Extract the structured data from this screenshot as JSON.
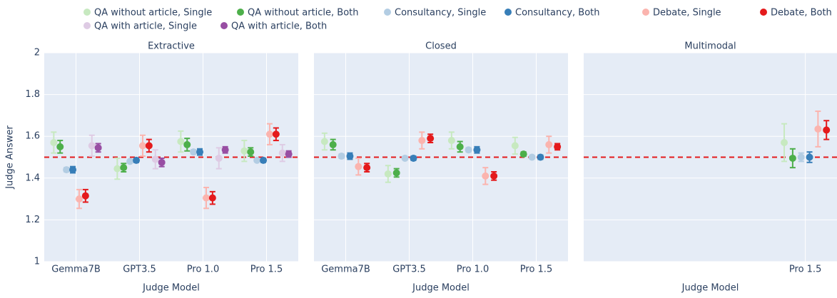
{
  "chart_data": [
    {
      "type": "errorbar",
      "title": "Extractive",
      "xlabel": "Judge Model",
      "ylabel": "Judge Answer",
      "categories": [
        "Gemma7B",
        "GPT3.5",
        "Pro 1.0",
        "Pro 1.5"
      ],
      "ylim": [
        1,
        2
      ],
      "yticks": [
        1,
        1.2,
        1.4,
        1.6,
        1.8,
        2
      ],
      "grid": true,
      "reference_line": 1.5,
      "reference_color": "#e41a1c",
      "series": [
        {
          "name": "QA without article, Single",
          "color": "#c7e9c0",
          "values": [
            1.57,
            1.445,
            1.575,
            1.53
          ],
          "errors": [
            0.05,
            0.05,
            0.05,
            0.05
          ]
        },
        {
          "name": "QA without article, Both",
          "color": "#4daf4a",
          "values": [
            1.55,
            1.45,
            1.56,
            1.525
          ],
          "errors": [
            0.03,
            0.02,
            0.03,
            0.02
          ]
        },
        {
          "name": "Consultancy, Single",
          "color": "#b3cde3",
          "values": [
            1.44,
            1.48,
            1.525,
            1.485
          ],
          "errors": [
            0.01,
            0.005,
            0.01,
            0.005
          ]
        },
        {
          "name": "Consultancy, Both",
          "color": "#377eb8",
          "values": [
            1.44,
            1.485,
            1.525,
            1.485
          ],
          "errors": [
            0.015,
            0.01,
            0.015,
            0.01
          ]
        },
        {
          "name": "Debate, Single",
          "color": "#fbb4ae",
          "values": [
            1.3,
            1.555,
            1.305,
            1.61
          ],
          "errors": [
            0.045,
            0.05,
            0.05,
            0.05
          ]
        },
        {
          "name": "Debate, Both",
          "color": "#e41a1c",
          "values": [
            1.315,
            1.555,
            1.305,
            1.61
          ],
          "errors": [
            0.03,
            0.03,
            0.03,
            0.03
          ]
        },
        {
          "name": "QA with article, Single",
          "color": "#decbe4",
          "values": [
            1.555,
            1.49,
            1.495,
            1.52
          ],
          "errors": [
            0.05,
            0.045,
            0.05,
            0.04
          ]
        },
        {
          "name": "QA with article, Both",
          "color": "#984ea3",
          "values": [
            1.545,
            1.475,
            1.535,
            1.515
          ],
          "errors": [
            0.02,
            0.02,
            0.015,
            0.015
          ]
        }
      ]
    },
    {
      "type": "errorbar",
      "title": "Closed",
      "xlabel": "Judge Model",
      "categories": [
        "Gemma7B",
        "GPT3.5",
        "Pro 1.0",
        "Pro 1.5"
      ],
      "ylim": [
        1,
        2
      ],
      "yticks": [
        1,
        1.2,
        1.4,
        1.6,
        1.8,
        2
      ],
      "grid": true,
      "reference_line": 1.5,
      "reference_color": "#e41a1c",
      "series": [
        {
          "name": "QA without article, Single",
          "color": "#c7e9c0",
          "values": [
            1.575,
            1.42,
            1.58,
            1.555
          ],
          "errors": [
            0.04,
            0.04,
            0.04,
            0.04
          ]
        },
        {
          "name": "QA without article, Both",
          "color": "#4daf4a",
          "values": [
            1.56,
            1.425,
            1.55,
            1.515
          ],
          "errors": [
            0.025,
            0.02,
            0.025,
            0.01
          ]
        },
        {
          "name": "Consultancy, Single",
          "color": "#b3cde3",
          "values": [
            1.505,
            1.495,
            1.535,
            1.5
          ],
          "errors": [
            0.01,
            0.005,
            0.01,
            0.005
          ]
        },
        {
          "name": "Consultancy, Both",
          "color": "#377eb8",
          "values": [
            1.505,
            1.495,
            1.535,
            1.5
          ],
          "errors": [
            0.015,
            0.01,
            0.015,
            0.01
          ]
        },
        {
          "name": "Debate, Single",
          "color": "#fbb4ae",
          "values": [
            1.455,
            1.58,
            1.41,
            1.56
          ],
          "errors": [
            0.04,
            0.04,
            0.04,
            0.04
          ]
        },
        {
          "name": "Debate, Both",
          "color": "#e41a1c",
          "values": [
            1.45,
            1.59,
            1.41,
            1.55
          ],
          "errors": [
            0.02,
            0.02,
            0.02,
            0.015
          ]
        }
      ]
    },
    {
      "type": "errorbar",
      "title": "Multimodal",
      "xlabel": "Judge Model",
      "categories": [
        null,
        null,
        null,
        "Pro 1.5"
      ],
      "ylim": [
        1,
        2
      ],
      "yticks": [
        1,
        1.2,
        1.4,
        1.6,
        1.8,
        2
      ],
      "grid": true,
      "reference_line": 1.5,
      "reference_color": "#e41a1c",
      "series": [
        {
          "name": "QA without article, Single",
          "color": "#c7e9c0",
          "values": [
            null,
            null,
            null,
            1.57
          ],
          "errors": [
            null,
            null,
            null,
            0.09
          ]
        },
        {
          "name": "QA without article, Both",
          "color": "#4daf4a",
          "values": [
            null,
            null,
            null,
            1.495
          ],
          "errors": [
            null,
            null,
            null,
            0.045
          ]
        },
        {
          "name": "Consultancy, Single",
          "color": "#b3cde3",
          "values": [
            null,
            null,
            null,
            1.5
          ],
          "errors": [
            null,
            null,
            null,
            0.02
          ]
        },
        {
          "name": "Consultancy, Both",
          "color": "#377eb8",
          "values": [
            null,
            null,
            null,
            1.5
          ],
          "errors": [
            null,
            null,
            null,
            0.025
          ]
        },
        {
          "name": "Debate, Single",
          "color": "#fbb4ae",
          "values": [
            null,
            null,
            null,
            1.635
          ],
          "errors": [
            null,
            null,
            null,
            0.085
          ]
        },
        {
          "name": "Debate, Both",
          "color": "#e41a1c",
          "values": [
            null,
            null,
            null,
            1.63
          ],
          "errors": [
            null,
            null,
            null,
            0.045
          ]
        }
      ]
    }
  ]
}
